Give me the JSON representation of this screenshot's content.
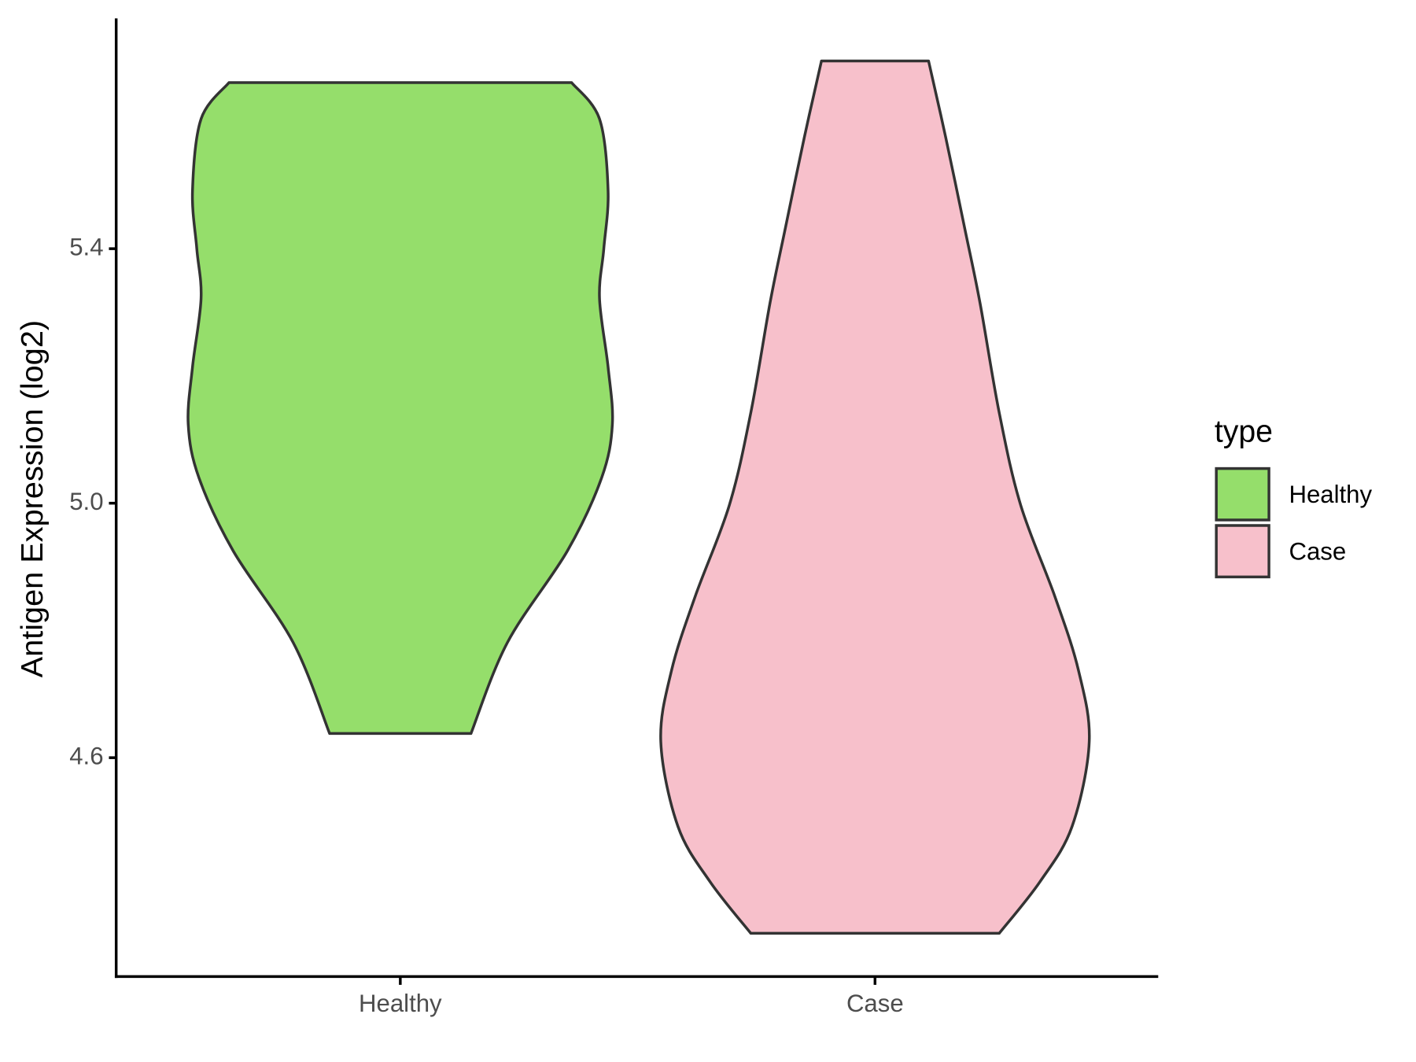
{
  "chart_data": {
    "type": "violin",
    "y_label": "Antigen Expression (log2)",
    "categories": [
      "Healthy",
      "Case"
    ],
    "legend_title": "type",
    "legend_position": "right",
    "ylim": [
      4.256,
      5.762
    ],
    "yticks": [
      {
        "value": 4.6,
        "label": "4.6"
      },
      {
        "value": 5.0,
        "label": "5.0"
      },
      {
        "value": 5.4,
        "label": "5.4"
      }
    ],
    "series": [
      {
        "name": "Healthy",
        "color": "#95de6b",
        "y": [
          5.661,
          5.604,
          5.491,
          5.4,
          5.322,
          5.214,
          5.124,
          5.04,
          4.925,
          4.781,
          4.638
        ],
        "density": [
          0.8,
          0.93,
          0.97,
          0.95,
          0.93,
          0.97,
          0.99,
          0.94,
          0.78,
          0.5,
          0.33
        ]
      },
      {
        "name": "Case",
        "color": "#f7c0cb",
        "y": [
          5.695,
          5.575,
          5.43,
          5.315,
          5.142,
          4.997,
          4.853,
          4.737,
          4.625,
          4.492,
          4.405,
          4.324
        ],
        "density": [
          0.25,
          0.33,
          0.42,
          0.49,
          0.58,
          0.68,
          0.84,
          0.95,
          1.0,
          0.92,
          0.77,
          0.58
        ]
      }
    ]
  }
}
